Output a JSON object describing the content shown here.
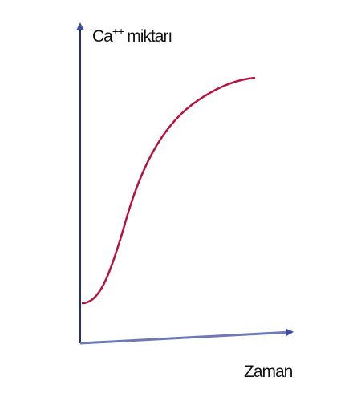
{
  "axes": {
    "y_label": {
      "base": "Ca",
      "superscript": "++",
      "rest": "miktarı"
    },
    "x_label": "Zaman"
  }
}
